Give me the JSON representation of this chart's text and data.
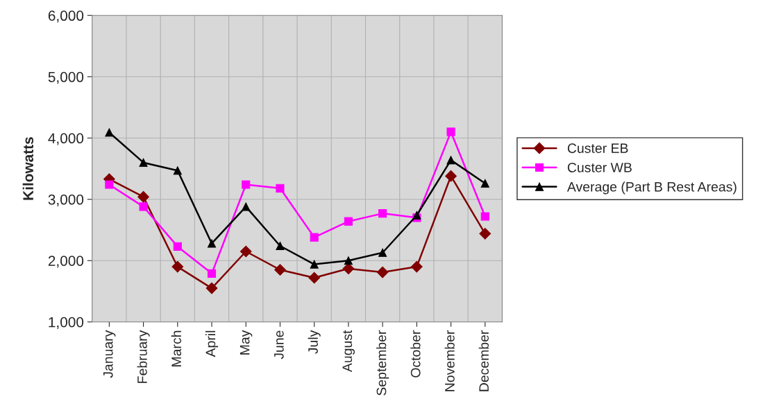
{
  "chart_data": {
    "type": "line",
    "ylabel": "Kilowatts",
    "categories": [
      "January",
      "February",
      "March",
      "April",
      "May",
      "June",
      "July",
      "August",
      "September",
      "October",
      "November",
      "December"
    ],
    "series": [
      {
        "name": "Custer EB",
        "color": "#800000",
        "marker": "diamond",
        "values": [
          3330,
          3040,
          1900,
          1550,
          2150,
          1850,
          1720,
          1870,
          1810,
          1900,
          3380,
          2440
        ]
      },
      {
        "name": "Custer WB",
        "color": "#ff00ff",
        "marker": "square",
        "values": [
          3240,
          2880,
          2230,
          1790,
          3240,
          3180,
          2380,
          2640,
          2770,
          2700,
          4100,
          2720
        ]
      },
      {
        "name": "Average (Part B Rest Areas)",
        "color": "#000000",
        "marker": "triangle",
        "values": [
          4090,
          3600,
          3470,
          2280,
          2880,
          2240,
          1940,
          2000,
          2130,
          2740,
          3640,
          3260
        ]
      }
    ],
    "ylim": [
      1000,
      6000
    ],
    "yticks": [
      {
        "value": 1000,
        "label": "1,000"
      },
      {
        "value": 2000,
        "label": "2,000"
      },
      {
        "value": 3000,
        "label": "3,000"
      },
      {
        "value": 4000,
        "label": "4,000"
      },
      {
        "value": 5000,
        "label": "5,000"
      },
      {
        "value": 6000,
        "label": "6,000"
      }
    ],
    "grid": true,
    "legend": "right"
  }
}
